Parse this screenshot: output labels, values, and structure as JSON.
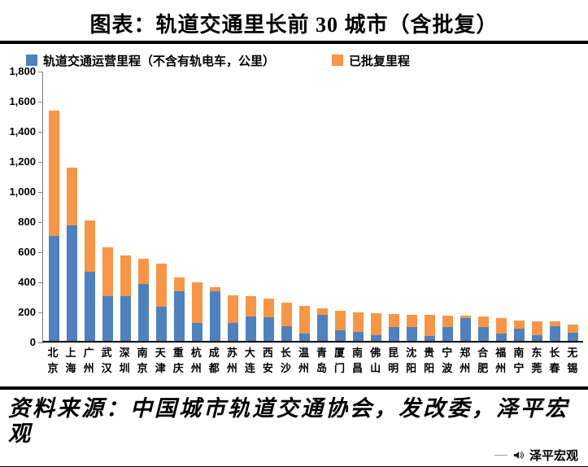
{
  "source": "资料来源：中国城市轨道交通协会，发改委，泽平宏观",
  "brand": "泽平宏观",
  "colors": {
    "bar_blue": "#4F81BD",
    "bar_orange": "#F79646",
    "rule_black": "#000000"
  },
  "chart_data": {
    "type": "bar",
    "stacked": true,
    "title": "图表：轨道交通里长前 30 城市（含批复）",
    "xlabel": "",
    "ylabel": "",
    "grid": false,
    "legend_position": "top",
    "ylim": [
      0,
      1800
    ],
    "y_tick_labels": [
      "0",
      "200",
      "400",
      "600",
      "800",
      "1,000",
      "1,200",
      "1,400",
      "1,600",
      "1,800"
    ],
    "categories": [
      "北京",
      "上海",
      "广州",
      "武汉",
      "深圳",
      "南京",
      "天津",
      "重庆",
      "杭州",
      "成都",
      "苏州",
      "大连",
      "西安",
      "长沙",
      "温州",
      "青岛",
      "厦门",
      "南昌",
      "佛山",
      "昆明",
      "沈阳",
      "贵阳",
      "宁波",
      "郑州",
      "合肥",
      "福州",
      "南宁",
      "东莞",
      "长春",
      "无锡"
    ],
    "series": [
      {
        "name": "轨道交通运营里程（不含有轨电车，公里）",
        "color": "#4F81BD",
        "values": [
          700,
          770,
          460,
          300,
          300,
          378,
          225,
          330,
          120,
          330,
          120,
          160,
          155,
          100,
          50,
          175,
          70,
          60,
          40,
          90,
          90,
          35,
          90,
          150,
          90,
          50,
          80,
          40,
          100,
          55
        ]
      },
      {
        "name": "已批复里程",
        "color": "#F79646",
        "values": [
          830,
          380,
          340,
          320,
          270,
          167,
          290,
          90,
          270,
          25,
          185,
          135,
          125,
          155,
          180,
          40,
          130,
          130,
          145,
          90,
          85,
          140,
          80,
          15,
          70,
          100,
          55,
          90,
          30,
          55
        ]
      }
    ]
  }
}
